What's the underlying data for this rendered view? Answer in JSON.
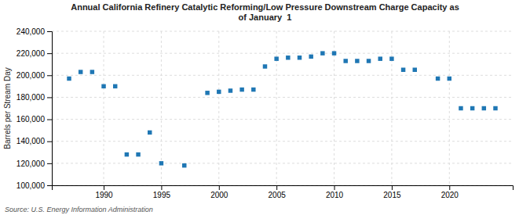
{
  "chart_data": {
    "type": "scatter",
    "title": "Annual California Refinery Catalytic Reforming/Low Pressure Downstream Charge Capacity as\nof January  1",
    "ylabel": "Barrels per Stream Day",
    "source": "Source: U.S. Energy Information Administration",
    "x": [
      1987,
      1988,
      1989,
      1990,
      1991,
      1992,
      1993,
      1994,
      1995,
      1997,
      1999,
      2000,
      2001,
      2002,
      2003,
      2004,
      2005,
      2006,
      2007,
      2008,
      2009,
      2010,
      2011,
      2012,
      2013,
      2014,
      2015,
      2016,
      2017,
      2019,
      2020,
      2021,
      2022,
      2023,
      2024
    ],
    "values": [
      197000,
      203000,
      203000,
      190000,
      190000,
      128000,
      128000,
      148000,
      120000,
      118000,
      184000,
      185000,
      186000,
      187000,
      187000,
      208000,
      215000,
      216000,
      216000,
      217000,
      220000,
      220000,
      213000,
      213000,
      213000,
      215000,
      215000,
      205000,
      205000,
      197000,
      197000,
      170000,
      170000,
      170000,
      170000
    ],
    "marker": "square",
    "grid": true,
    "xlim": [
      1985.5,
      2025.5
    ],
    "xticks": [
      1990,
      1995,
      2000,
      2005,
      2010,
      2015,
      2020
    ],
    "ylim": [
      100000,
      240000
    ],
    "yticks": [
      {
        "value": 100000,
        "label": "100,000"
      },
      {
        "value": 120000,
        "label": "120,000"
      },
      {
        "value": 140000,
        "label": "140,000"
      },
      {
        "value": 160000,
        "label": "160,000"
      },
      {
        "value": 180000,
        "label": "180,000"
      },
      {
        "value": 200000,
        "label": "200,000"
      },
      {
        "value": 220000,
        "label": "220,000"
      },
      {
        "value": 240000,
        "label": "240,000"
      }
    ]
  }
}
